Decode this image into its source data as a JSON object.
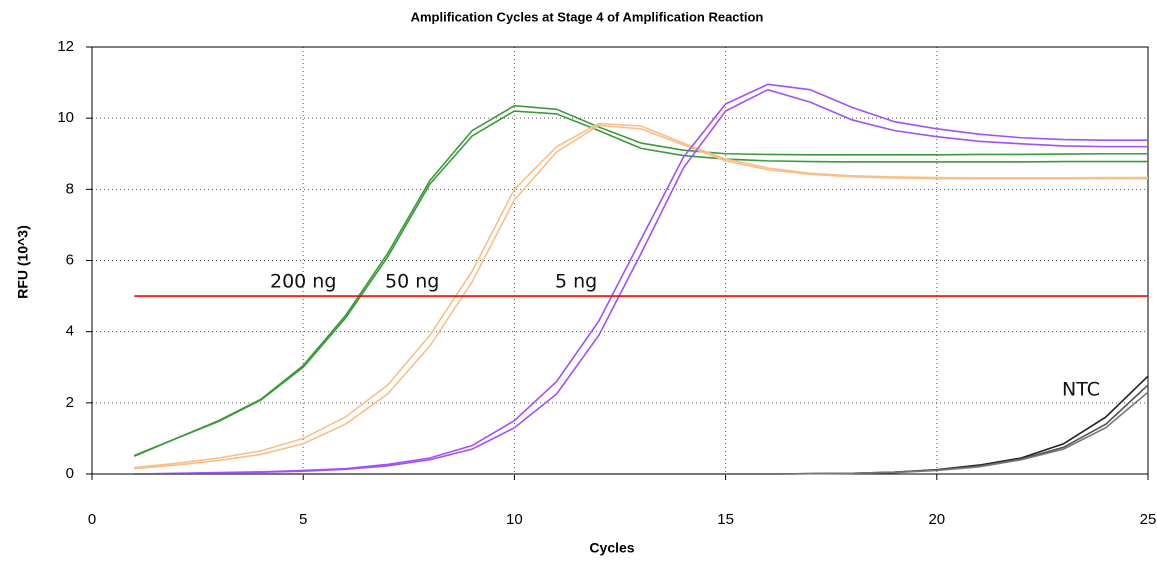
{
  "chart_data": {
    "type": "line",
    "title": "Amplification Cycles at Stage 4 of Amplification Reaction",
    "x_label": "Cycles",
    "y_label": "RFU (10^3)",
    "x": [
      1,
      2,
      3,
      4,
      5,
      6,
      7,
      8,
      9,
      10,
      11,
      12,
      13,
      14,
      15,
      16,
      17,
      18,
      19,
      20,
      21,
      22,
      23,
      24,
      25
    ],
    "series": [
      {
        "color": "#3c9a3c",
        "values": [
          0.5,
          1.0,
          1.5,
          2.1,
          3.05,
          4.45,
          6.2,
          8.25,
          9.65,
          10.35,
          10.25,
          9.75,
          9.3,
          9.1,
          9.0,
          8.98,
          8.97,
          8.97,
          8.97,
          8.97,
          8.98,
          8.98,
          8.99,
          9.0,
          9.0
        ]
      },
      {
        "color": "#3c9a3c",
        "values": [
          0.52,
          1.0,
          1.48,
          2.08,
          3.0,
          4.38,
          6.1,
          8.15,
          9.5,
          10.2,
          10.12,
          9.65,
          9.15,
          8.95,
          8.85,
          8.8,
          8.78,
          8.77,
          8.77,
          8.77,
          8.77,
          8.77,
          8.78,
          8.78,
          8.78
        ]
      },
      {
        "color": "#f8bf88",
        "values": [
          0.18,
          0.3,
          0.45,
          0.65,
          1.0,
          1.6,
          2.5,
          3.9,
          5.7,
          8.0,
          9.2,
          9.85,
          9.78,
          9.3,
          8.85,
          8.6,
          8.45,
          8.38,
          8.35,
          8.33,
          8.32,
          8.32,
          8.32,
          8.33,
          8.33
        ]
      },
      {
        "color": "#f8bf88",
        "values": [
          0.15,
          0.25,
          0.38,
          0.55,
          0.85,
          1.4,
          2.25,
          3.6,
          5.4,
          7.7,
          9.05,
          9.8,
          9.7,
          9.25,
          8.8,
          8.55,
          8.42,
          8.35,
          8.32,
          8.3,
          8.3,
          8.3,
          8.3,
          8.3,
          8.3
        ]
      },
      {
        "color": "#a050ff",
        "values": [
          0.0,
          0.02,
          0.04,
          0.06,
          0.1,
          0.15,
          0.27,
          0.45,
          0.8,
          1.5,
          2.6,
          4.3,
          6.6,
          8.9,
          10.4,
          10.95,
          10.8,
          10.3,
          9.9,
          9.7,
          9.55,
          9.45,
          9.4,
          9.38,
          9.38
        ]
      },
      {
        "color": "#a050ff",
        "values": [
          0.0,
          0.01,
          0.03,
          0.05,
          0.08,
          0.13,
          0.23,
          0.4,
          0.7,
          1.3,
          2.25,
          3.9,
          6.2,
          8.6,
          10.2,
          10.8,
          10.45,
          9.95,
          9.65,
          9.48,
          9.35,
          9.28,
          9.22,
          9.2,
          9.2
        ]
      },
      {
        "color": "#222222",
        "values": [
          0,
          0,
          0,
          0,
          0,
          0,
          0,
          0,
          0,
          0,
          0,
          0,
          0,
          0,
          0,
          0,
          0.01,
          0.02,
          0.05,
          0.12,
          0.25,
          0.45,
          0.85,
          1.6,
          2.75
        ]
      },
      {
        "color": "#555555",
        "values": [
          0,
          0,
          0,
          0,
          0,
          0,
          0,
          0,
          0,
          0,
          0,
          0,
          0,
          0,
          0,
          0,
          0.01,
          0.02,
          0.05,
          0.11,
          0.22,
          0.42,
          0.75,
          1.4,
          2.5
        ]
      },
      {
        "color": "#777777",
        "values": [
          0,
          0,
          0,
          0,
          0,
          0,
          0,
          0,
          0,
          0,
          0,
          0,
          0,
          0,
          0,
          0,
          0.01,
          0.02,
          0.04,
          0.1,
          0.2,
          0.4,
          0.7,
          1.3,
          2.3
        ]
      },
      {
        "color": "#ff0000",
        "values": [
          5,
          5,
          5,
          5,
          5,
          5,
          5,
          5,
          5,
          5,
          5,
          5,
          5,
          5,
          5,
          5,
          5,
          5,
          5,
          5,
          5,
          5,
          5,
          5,
          5
        ]
      }
    ],
    "annotations": [
      "200 ng",
      "50 ng",
      "5 ng",
      "NTC"
    ],
    "xlim": [
      0,
      25
    ],
    "xticks": [
      0,
      5,
      10,
      15,
      20,
      25
    ],
    "ylim": [
      0,
      12
    ],
    "yticks": [
      0,
      2,
      4,
      6,
      8,
      10,
      12
    ],
    "grid": true
  }
}
